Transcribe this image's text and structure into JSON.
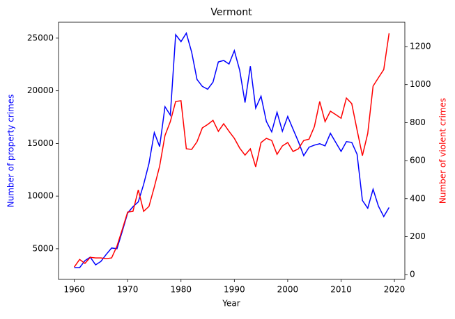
{
  "chart_data": {
    "type": "line",
    "title": "Vermont",
    "x_label": "Year",
    "y_label": "Number of property crimes",
    "y2_label": "Number of violent crimes",
    "x": [
      1960,
      1961,
      1962,
      1963,
      1964,
      1965,
      1966,
      1967,
      1968,
      1969,
      1970,
      1971,
      1972,
      1973,
      1974,
      1975,
      1976,
      1977,
      1978,
      1979,
      1980,
      1981,
      1982,
      1983,
      1984,
      1985,
      1986,
      1987,
      1988,
      1989,
      1990,
      1991,
      1992,
      1993,
      1994,
      1995,
      1996,
      1997,
      1998,
      1999,
      2000,
      2001,
      2002,
      2003,
      2004,
      2005,
      2006,
      2007,
      2008,
      2009,
      2010,
      2011,
      2012,
      2013,
      2014,
      2015,
      2016,
      2017,
      2018,
      2019
    ],
    "series": [
      {
        "name": "Number of property crimes",
        "color": "#0000ff",
        "axis": "y",
        "values": [
          3200,
          3200,
          3870,
          4200,
          3470,
          3800,
          4470,
          5070,
          5000,
          6660,
          8390,
          8990,
          9450,
          11110,
          13100,
          16030,
          14700,
          18490,
          17690,
          25330,
          24670,
          25470,
          23670,
          21080,
          20420,
          20150,
          20820,
          22740,
          22880,
          22540,
          23810,
          21950,
          18890,
          22340,
          18360,
          19490,
          17090,
          16100,
          17960,
          16160,
          17560,
          16360,
          15170,
          13840,
          14640,
          14840,
          14970,
          14770,
          15960,
          15100,
          14240,
          15170,
          15100,
          13970,
          9590,
          8850,
          10650,
          9050,
          8060,
          8920
        ]
      },
      {
        "name": "Number of violent crimes",
        "color": "#ff0000",
        "axis": "y2",
        "values": [
          40,
          80,
          59,
          91,
          88,
          88,
          84,
          88,
          150,
          238,
          329,
          333,
          446,
          333,
          359,
          461,
          571,
          732,
          805,
          911,
          915,
          662,
          659,
          699,
          772,
          790,
          812,
          754,
          794,
          754,
          717,
          666,
          629,
          662,
          567,
          695,
          717,
          706,
          633,
          677,
          695,
          648,
          662,
          706,
          713,
          779,
          911,
          805,
          860,
          842,
          823,
          929,
          900,
          761,
          626,
          743,
          992,
          1036,
          1079,
          1270
        ]
      }
    ],
    "xlim": [
      1957.05,
      2021.95
    ],
    "xticks": [
      1960,
      1970,
      1980,
      1990,
      2000,
      2010,
      2020
    ],
    "ylim": [
      2090,
      26510
    ],
    "yticks": [
      5000,
      10000,
      15000,
      20000,
      25000
    ],
    "y2lim": [
      -25,
      1328
    ],
    "y2ticks": [
      0,
      200,
      400,
      600,
      800,
      1000,
      1200
    ]
  }
}
